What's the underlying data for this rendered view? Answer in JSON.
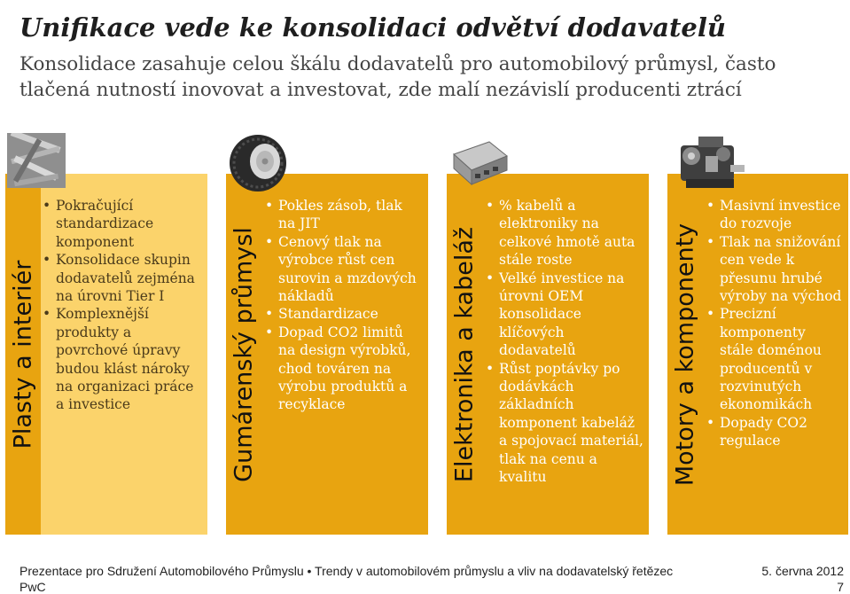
{
  "slide": {
    "title": "Unifikace vede ke konsolidaci odvětví dodavatelů",
    "subtitle": "Konsolidace zasahuje celou škálu dodavatelů pro automobilový průmysl, často tlačená nutností inovovat a investovat, zde malí nezávislí producenti ztrácí"
  },
  "columns": [
    {
      "label": "Plasty a interiér",
      "image_icon": "plastic-parts-image",
      "bullets": [
        "Pokračující standardizace komponent",
        "Konsolidace skupin dodavatelů zejména na úrovni Tier I",
        "Komplexnější produkty a povrchové úpravy budou klást nároky na organizaci práce a investice"
      ]
    },
    {
      "label": "Gumárenský průmysl",
      "image_icon": "tire-image",
      "bullets": [
        "Pokles zásob, tlak na JIT",
        "Cenový tlak na výrobce  růst cen surovin a mzdových nákladů",
        "Standardizace",
        "Dopad CO2 limitů  na design výrobků, chod továren na výrobu produktů a recyklace"
      ]
    },
    {
      "label": "Elektronika a kabeláž",
      "image_icon": "electronic-module-image",
      "bullets": [
        "% kabelů a elektroniky na celkové hmotě auta stále roste",
        "Velké investice na úrovni OEM  konsolidace klíčových dodavatelů",
        "Růst poptávky po dodávkách základních komponent  kabeláž a spojovací materiál, tlak na cenu a kvalitu"
      ]
    },
    {
      "label": "Motory a komponenty",
      "image_icon": "engine-image",
      "bullets": [
        "Masivní investice do rozvoje",
        "Tlak na snižování cen vede k přesunu hrubé výroby na východ",
        "Precizní komponenty stále doménou producentů v rozvinutých ekonomikách",
        "Dopady CO2 regulace"
      ]
    }
  ],
  "footer": {
    "left": "Prezentace pro Sdružení Automobilového Průmyslu • Trendy v automobilovém průmyslu a vliv na dodavatelský řetězec",
    "date": "5. června 2012",
    "brand": "PwC",
    "page": "7"
  },
  "colors": {
    "dark_band": "#e8a410",
    "light_band": "#fbd36b"
  }
}
